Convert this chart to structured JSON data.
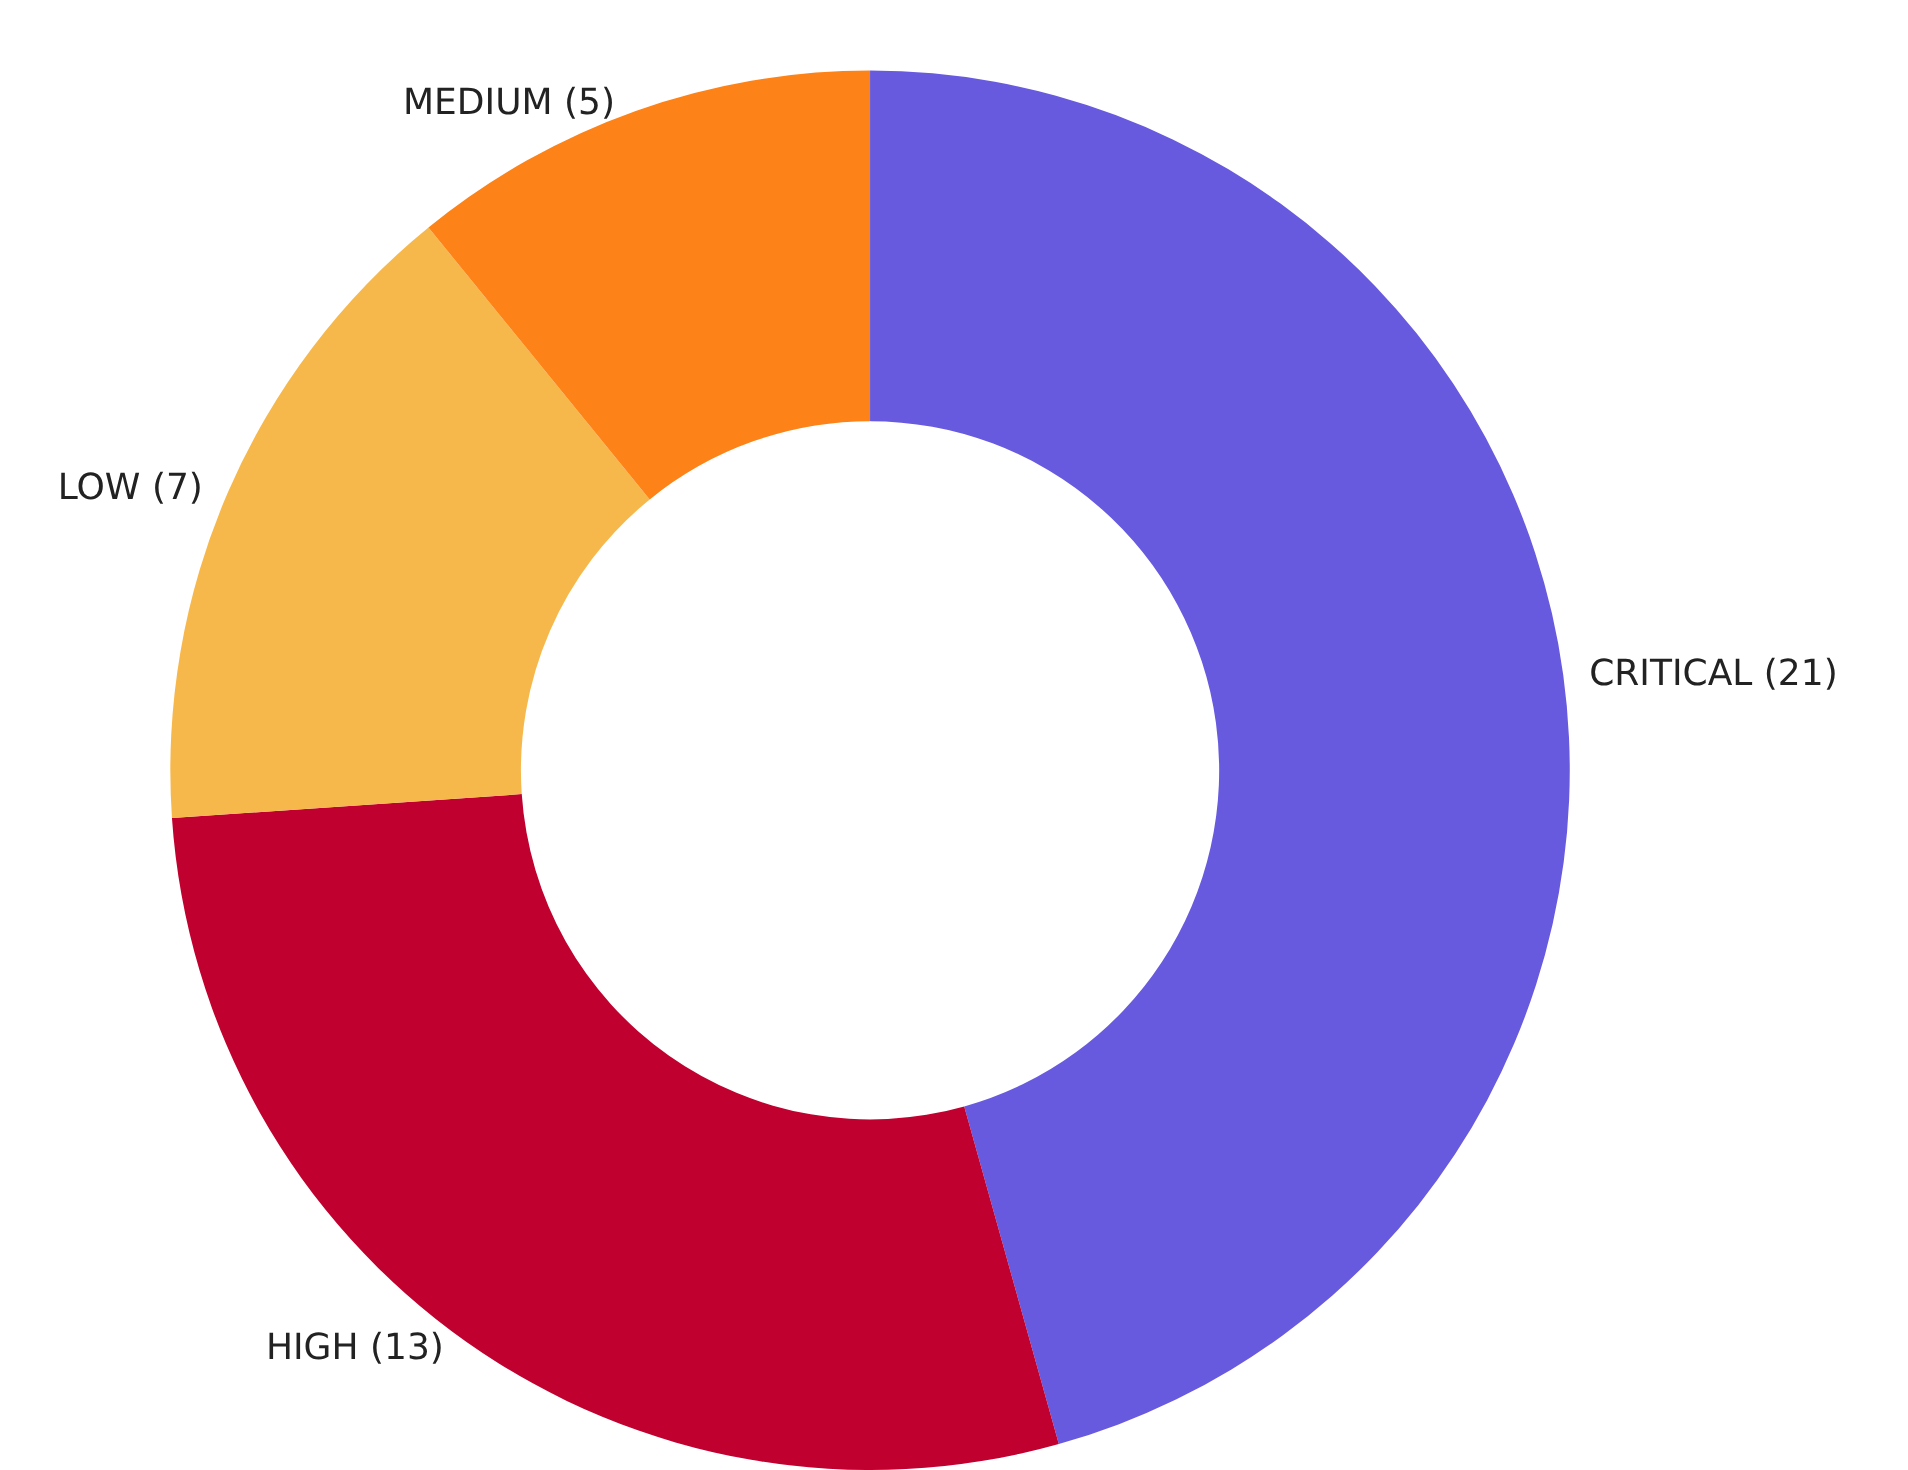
{
  "chart_data": {
    "type": "donut",
    "categories": [
      "CRITICAL (21)",
      "HIGH (13)",
      "LOW (7)",
      "MEDIUM (5)"
    ],
    "values": [
      21,
      13,
      7,
      5
    ],
    "colors": [
      "#675ade",
      "#c0002f",
      "#f7b84b",
      "#fd8217"
    ],
    "legend": false
  }
}
